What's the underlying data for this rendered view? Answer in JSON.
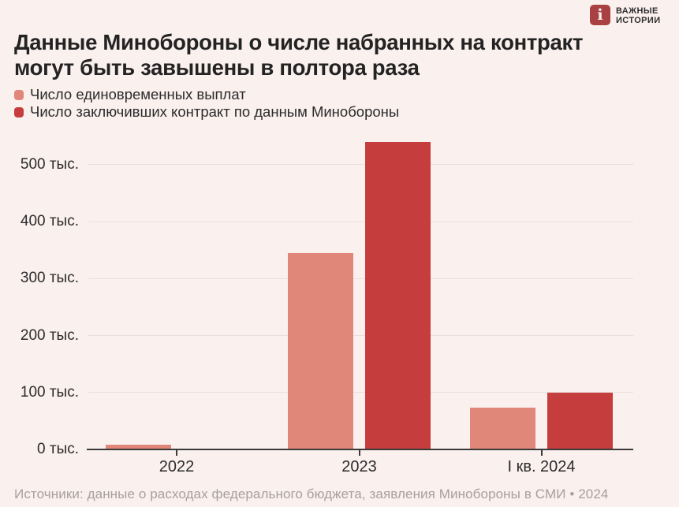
{
  "brand": {
    "mark": "i",
    "name_line1": "ВАЖНЫЕ",
    "name_line2": "ИСТОРИИ"
  },
  "title": {
    "line1": "Данные Минобороны о числе набранных на контракт",
    "line2": "могут быть завышены в полтора раза"
  },
  "source": "Источники: данные о расходах федерального бюджета, заявления Минобороны в СМИ • 2024",
  "colors": {
    "background": "#FAF0EE",
    "payments_bar": "#E18779",
    "contracts_bar": "#C63D3D",
    "logo": "#A94142",
    "gridline": "#EADFDD",
    "axis": "#3A3A3A",
    "source_text": "#A8A09E"
  },
  "chart_data": {
    "type": "bar",
    "title": "Данные Минобороны о числе набранных на контракт могут быть завышены в полтора раза",
    "categories": [
      "2022",
      "2023",
      "I кв. 2024"
    ],
    "series": [
      {
        "name": "Число единовременных выплат",
        "color": "#E18779",
        "values": [
          8,
          345,
          73
        ]
      },
      {
        "name": "Число заключивших контракт по данным Минобороны",
        "color": "#C63D3D",
        "values": [
          null,
          540,
          100
        ]
      }
    ],
    "unit": "тыс. человек",
    "xlabel": "",
    "ylabel": "",
    "ylim": [
      0,
      555
    ],
    "yticks": [
      0,
      100,
      200,
      300,
      400,
      500
    ],
    "ytick_labels": [
      "0 тыс.",
      "100 тыс.",
      "200 тыс.",
      "300 тыс.",
      "400 тыс.",
      "500 тыс."
    ],
    "grid": true,
    "legend_position": "top-left"
  }
}
